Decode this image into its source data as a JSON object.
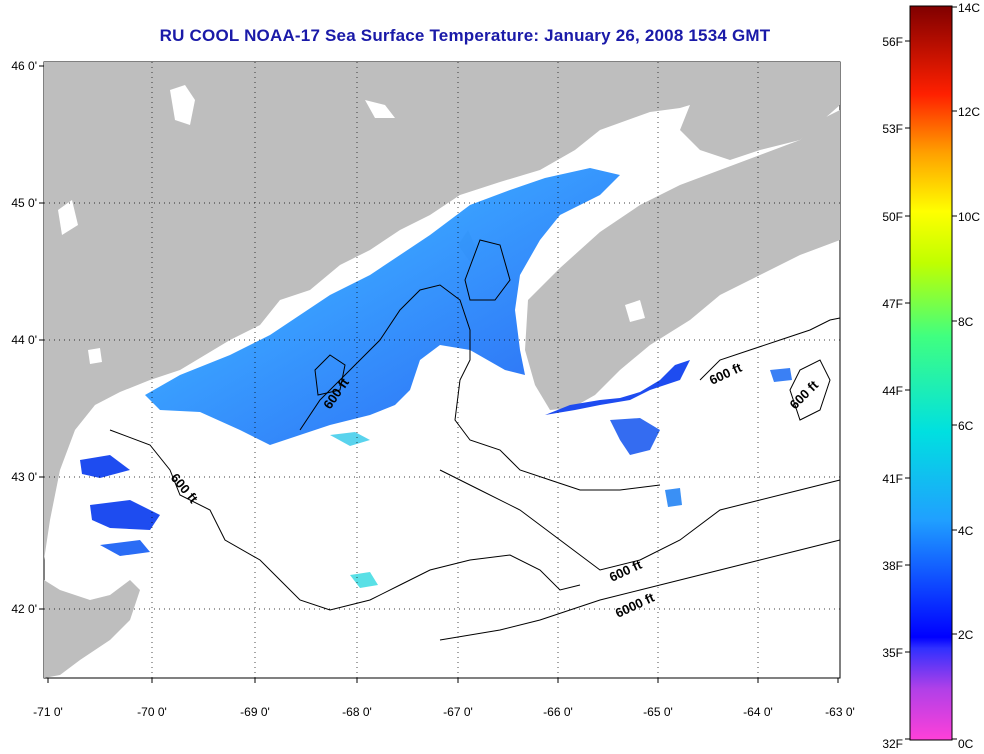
{
  "title": "RU COOL  NOAA-17  Sea Surface Temperature:  January 26, 2008 1534 GMT",
  "x_ticks": [
    "-71 0'",
    "-70 0'",
    "-69 0'",
    "-68 0'",
    "-67 0'",
    "-66 0'",
    "-65 0'",
    "-64 0'",
    "-63 0'"
  ],
  "y_ticks": [
    "46 0'",
    "45 0'",
    "44 0'",
    "43 0'",
    "42 0'"
  ],
  "contour_labels": [
    "600 ft",
    "600 ft",
    "600 ft",
    "600 ft",
    "600 ft",
    "6000 ft"
  ],
  "colorbar": {
    "celsius_ticks": [
      "14C",
      "12C",
      "10C",
      "8C",
      "6C",
      "4C",
      "2C",
      "0C"
    ],
    "fahrenheit_ticks": [
      "56F",
      "53F",
      "50F",
      "47F",
      "44F",
      "41F",
      "38F",
      "35F",
      "32F"
    ],
    "range_c": [
      0,
      14
    ]
  },
  "colors": {
    "land": "#bebebe",
    "title": "#1a1aa8",
    "sst_warm": "#2d8cff",
    "sst_cold": "#1e4cf0"
  }
}
